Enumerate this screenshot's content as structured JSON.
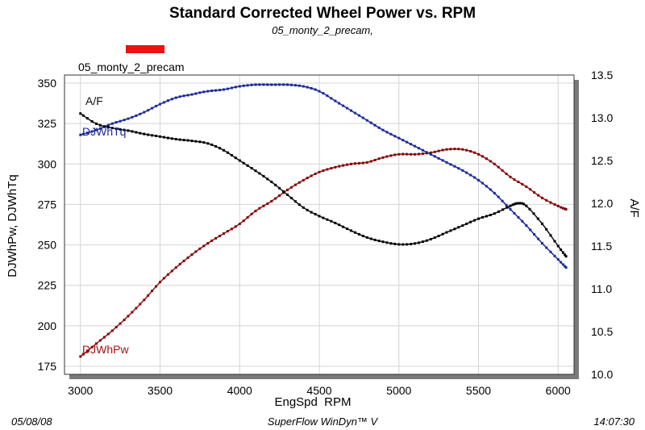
{
  "chart_data": {
    "type": "line",
    "title": "Standard Corrected Wheel Power vs. RPM",
    "subtitle": "05_monty_2_precam,",
    "legend": {
      "label": "05_monty_2_precam",
      "color": "#ee1111",
      "placement": "top-left"
    },
    "xlabel": "EngSpd  RPM",
    "ylabel_left": "DJWhPw, DJWhTq",
    "ylabel_right": "A/F",
    "xlim": [
      2900,
      6100
    ],
    "ylim_left": [
      170,
      355
    ],
    "ylim_right": [
      10.0,
      13.5
    ],
    "x_ticks": [
      3000,
      3500,
      4000,
      4500,
      5000,
      5500,
      6000
    ],
    "y_ticks_left": [
      175,
      200,
      225,
      250,
      275,
      300,
      325,
      350
    ],
    "y_ticks_right": [
      "10.0",
      "10.5",
      "11.0",
      "11.5",
      "12.0",
      "12.5",
      "13.0",
      "13.5"
    ],
    "grid": true,
    "series": [
      {
        "name": "DJWhPw",
        "axis": "left",
        "color": "#aa1111",
        "x": [
          3000,
          3100,
          3200,
          3300,
          3400,
          3500,
          3600,
          3700,
          3800,
          3900,
          4000,
          4100,
          4200,
          4300,
          4400,
          4500,
          4600,
          4700,
          4800,
          4900,
          5000,
          5100,
          5200,
          5300,
          5400,
          5500,
          5600,
          5700,
          5800,
          5900,
          6000,
          6050
        ],
        "values": [
          181,
          189,
          197,
          206,
          216,
          227,
          236,
          244,
          251,
          257,
          263,
          271,
          277,
          284,
          290,
          295,
          298,
          300,
          301,
          304,
          306,
          306,
          307,
          309,
          309,
          306,
          300,
          292,
          286,
          279,
          274,
          272
        ]
      },
      {
        "name": "DJWhTq",
        "axis": "left",
        "color": "#1a2a99",
        "x": [
          3000,
          3100,
          3200,
          3300,
          3400,
          3500,
          3600,
          3700,
          3800,
          3900,
          4000,
          4100,
          4200,
          4300,
          4400,
          4500,
          4600,
          4700,
          4800,
          4900,
          5000,
          5100,
          5200,
          5300,
          5400,
          5500,
          5600,
          5700,
          5800,
          5900,
          6000,
          6050
        ],
        "values": [
          318,
          321,
          325,
          328,
          332,
          337,
          341,
          343,
          345,
          346,
          348,
          349,
          349,
          349,
          348,
          345,
          339,
          333,
          327,
          321,
          316,
          311,
          306,
          301,
          296,
          290,
          282,
          272,
          262,
          251,
          241,
          236
        ]
      },
      {
        "name": "A/F",
        "axis": "right",
        "color": "#111111",
        "x": [
          3000,
          3100,
          3200,
          3300,
          3400,
          3500,
          3600,
          3700,
          3800,
          3900,
          4000,
          4100,
          4200,
          4300,
          4400,
          4500,
          4600,
          4700,
          4800,
          4900,
          5000,
          5100,
          5200,
          5300,
          5400,
          5500,
          5600,
          5700,
          5750,
          5800,
          5900,
          6000,
          6050
        ],
        "values": [
          13.05,
          12.93,
          12.88,
          12.85,
          12.81,
          12.78,
          12.75,
          12.73,
          12.7,
          12.62,
          12.5,
          12.38,
          12.25,
          12.1,
          11.95,
          11.85,
          11.77,
          11.68,
          11.6,
          11.55,
          11.52,
          11.53,
          11.58,
          11.66,
          11.74,
          11.82,
          11.88,
          11.97,
          12.0,
          11.97,
          11.76,
          11.5,
          11.38
        ]
      }
    ],
    "annotations": [
      {
        "text": "A/F",
        "color": "#111111"
      },
      {
        "text": "DJWhTq",
        "color": "#1a2a99"
      },
      {
        "text": "DJWhPw",
        "color": "#aa1111"
      }
    ]
  },
  "footer": {
    "date": "05/08/08",
    "software": "SuperFlow WinDyn™ V",
    "time": "14:07:30"
  }
}
